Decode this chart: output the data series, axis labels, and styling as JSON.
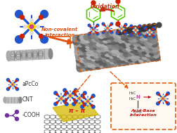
{
  "background_color": "#ffffff",
  "figsize": [
    2.52,
    1.89
  ],
  "dpi": 100,
  "phthalocyanine": {
    "arm_color": "#2255cc",
    "arm_tip_color": "#2255cc",
    "center_color": "#ffdd00",
    "center_dot_color": "#cc4488",
    "red_dot_color": "#cc2200",
    "white_dot_color": "#dddddd"
  },
  "cnt_color": "#888888",
  "cnt_dark": "#444444",
  "cnt_light": "#cccccc",
  "noncovalent_text": "Non-covalent\ninteraction",
  "noncovalent_color": "#e05010",
  "oxidation_text": "Oxidation",
  "oxidation_color": "#c03010",
  "pi_pi_text": "π – π",
  "pi_pi_color": "#cc1111",
  "acidbase_text": "Acid-Base\ninteraction",
  "acidbase_color": "#cc1111",
  "legend_labels": [
    "aPcCo",
    "CNT",
    "-COOH"
  ],
  "legend_colors": [
    "#2255cc",
    "#888888",
    "#7030a0"
  ],
  "orange_dash": "#e06010",
  "graphene_color": "#666666",
  "yellow_layer": "#ddbb00",
  "molecule_green": "#55cc00",
  "molecule_red_o": "#cc2200",
  "molecule_blue_n": "#2244cc"
}
